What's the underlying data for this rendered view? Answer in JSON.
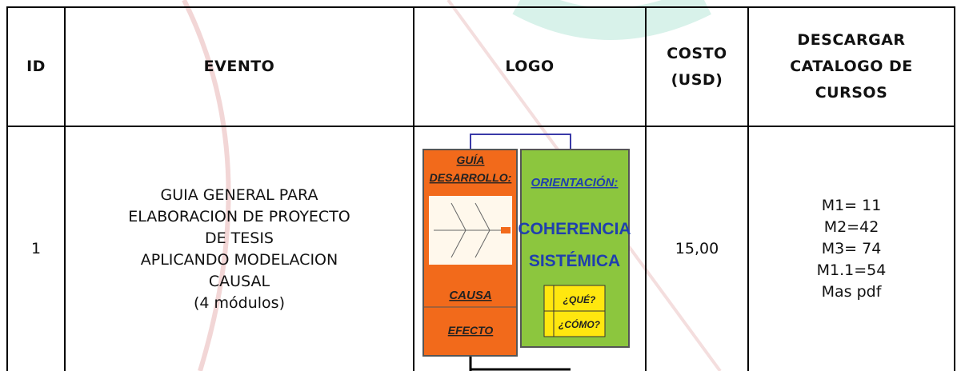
{
  "table": {
    "headers": {
      "id": "ID",
      "evento": "EVENTO",
      "logo": "LOGO",
      "costo": [
        "COSTO",
        "(USD)"
      ],
      "descargar": [
        "DESCARGAR",
        "CATALOGO DE",
        "CURSOS"
      ]
    },
    "rows": [
      {
        "id": "1",
        "evento": [
          "GUIA GENERAL PARA",
          "ELABORACION DE PROYECTO",
          "DE TESIS",
          "APLICANDO MODELACION",
          "CAUSAL",
          "(4 módulos)"
        ],
        "logo": {
          "left_title": [
            "GUÍA",
            "DESARROLLO:"
          ],
          "left_bottom": [
            "CAUSA",
            "EFECTO"
          ],
          "right_title": "ORIENTACIÓN:",
          "right_main": [
            "COHERENCIA",
            "SISTÉMICA"
          ],
          "right_questions": [
            "¿QUÉ?",
            "¿CÓMO?"
          ]
        },
        "costo": "15,00",
        "descargar": [
          "M1= 11",
          "M2=42",
          "M3= 74",
          "M1.1=54",
          "Mas pdf"
        ]
      }
    ]
  }
}
